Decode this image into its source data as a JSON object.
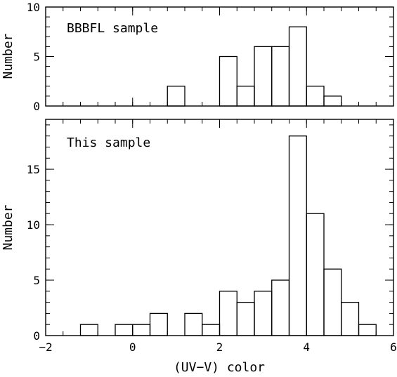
{
  "chart_data": [
    {
      "type": "bar",
      "style": "step-histogram",
      "annotation": "BBBFL sample",
      "ylabel": "Number",
      "xlabel": "",
      "xlim": [
        -2,
        6
      ],
      "ylim": [
        0,
        10
      ],
      "bin_width": 0.4,
      "bins": [
        {
          "x0": 0.8,
          "x1": 1.2,
          "count": 2
        },
        {
          "x0": 1.2,
          "x1": 1.6,
          "count": 0
        },
        {
          "x0": 1.6,
          "x1": 2.0,
          "count": 0
        },
        {
          "x0": 2.0,
          "x1": 2.4,
          "count": 5
        },
        {
          "x0": 2.4,
          "x1": 2.8,
          "count": 2
        },
        {
          "x0": 2.8,
          "x1": 3.2,
          "count": 6
        },
        {
          "x0": 3.2,
          "x1": 3.6,
          "count": 6
        },
        {
          "x0": 3.6,
          "x1": 4.0,
          "count": 8
        },
        {
          "x0": 4.0,
          "x1": 4.4,
          "count": 2
        },
        {
          "x0": 4.4,
          "x1": 4.8,
          "count": 1
        }
      ],
      "x_ticks": [
        -2,
        0,
        2,
        4,
        6
      ],
      "x_minor_step": 0.4,
      "y_ticks": [
        0,
        5,
        10
      ],
      "y_minor_step": 1,
      "show_x_tick_labels": false
    },
    {
      "type": "bar",
      "style": "step-histogram",
      "annotation": "This sample",
      "ylabel": "Number",
      "xlabel": "(UV−V) color",
      "xlim": [
        -2,
        6
      ],
      "ylim": [
        0,
        19.5
      ],
      "bin_width": 0.4,
      "bins": [
        {
          "x0": -1.2,
          "x1": -0.8,
          "count": 1
        },
        {
          "x0": -0.8,
          "x1": -0.4,
          "count": 0
        },
        {
          "x0": -0.4,
          "x1": 0.0,
          "count": 1
        },
        {
          "x0": 0.0,
          "x1": 0.4,
          "count": 1
        },
        {
          "x0": 0.4,
          "x1": 0.8,
          "count": 2
        },
        {
          "x0": 0.8,
          "x1": 1.2,
          "count": 0
        },
        {
          "x0": 1.2,
          "x1": 1.6,
          "count": 2
        },
        {
          "x0": 1.6,
          "x1": 2.0,
          "count": 1
        },
        {
          "x0": 2.0,
          "x1": 2.4,
          "count": 4
        },
        {
          "x0": 2.4,
          "x1": 2.8,
          "count": 3
        },
        {
          "x0": 2.8,
          "x1": 3.2,
          "count": 4
        },
        {
          "x0": 3.2,
          "x1": 3.6,
          "count": 5
        },
        {
          "x0": 3.6,
          "x1": 4.0,
          "count": 18
        },
        {
          "x0": 4.0,
          "x1": 4.4,
          "count": 11
        },
        {
          "x0": 4.4,
          "x1": 4.8,
          "count": 6
        },
        {
          "x0": 4.8,
          "x1": 5.2,
          "count": 3
        },
        {
          "x0": 5.2,
          "x1": 5.6,
          "count": 1
        }
      ],
      "x_ticks": [
        -2,
        0,
        2,
        4,
        6
      ],
      "x_tick_labels": [
        "−2",
        "0",
        "2",
        "4",
        "6"
      ],
      "x_minor_step": 0.4,
      "y_ticks": [
        0,
        5,
        10,
        15
      ],
      "y_minor_step": 1,
      "show_x_tick_labels": true
    }
  ]
}
